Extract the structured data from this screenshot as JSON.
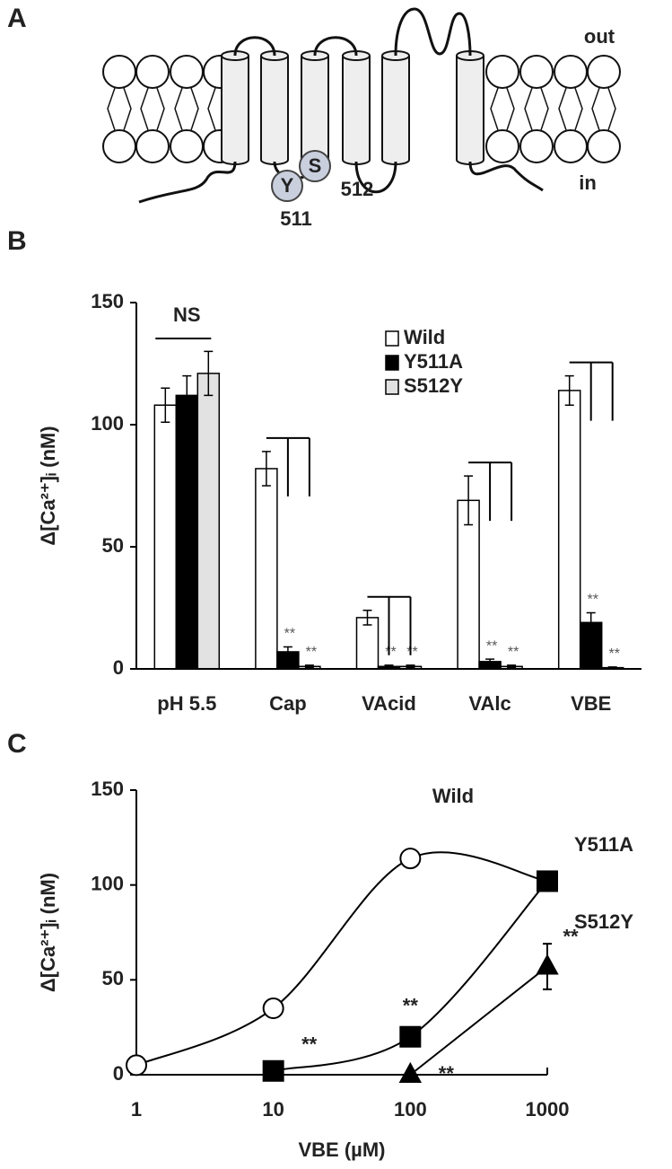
{
  "diagram": {
    "panel": "A",
    "out_label": "out",
    "in_label": "in",
    "residues": [
      {
        "letter": "Y",
        "number": "511"
      },
      {
        "letter": "S",
        "number": "512"
      }
    ]
  },
  "chart_data": [
    {
      "panel": "B",
      "type": "bar",
      "y_label": "Δ[Ca²⁺]ᵢ (nM)",
      "categories": [
        "pH 5.5",
        "Cap",
        "VAcid",
        "VAlc",
        "VBE"
      ],
      "ylim": [
        0,
        150
      ],
      "yticks": [
        0,
        50,
        100,
        150
      ],
      "legend": "top-right",
      "ns_label": "NS",
      "series": [
        {
          "name": "Wild",
          "color": "#ffffff",
          "values": [
            108,
            82,
            21,
            69,
            114
          ],
          "errors": [
            7,
            7,
            3,
            10,
            6
          ]
        },
        {
          "name": "Y511A",
          "color": "#000000",
          "values": [
            112,
            7,
            1,
            3,
            19
          ],
          "errors": [
            8,
            2,
            0.5,
            1,
            4
          ],
          "sig_labels": [
            null,
            "**",
            "**",
            "**",
            "**"
          ]
        },
        {
          "name": "S512Y",
          "color": "#e2e2e2",
          "values": [
            121,
            1,
            1,
            1,
            0.5
          ],
          "errors": [
            9,
            0.5,
            0.5,
            0.5,
            0.3
          ],
          "sig_labels": [
            null,
            "**",
            "**",
            "**",
            "**"
          ]
        }
      ]
    },
    {
      "panel": "C",
      "type": "line",
      "x_label": "VBE (µM)",
      "y_label": "Δ[Ca²⁺]ᵢ (nM)",
      "x": [
        1,
        10,
        100,
        1000
      ],
      "xlim": [
        1,
        1000
      ],
      "xticks": [
        1,
        10,
        100,
        1000
      ],
      "log_x": true,
      "ylim": [
        0,
        150
      ],
      "yticks": [
        0,
        50,
        100,
        150
      ],
      "series": [
        {
          "name": "Wild",
          "color": "#ffffff",
          "marker": "circle",
          "values": [
            5,
            35,
            114,
            102
          ],
          "errors": [
            null,
            null,
            3,
            null
          ]
        },
        {
          "name": "Y511A",
          "color": "#000000",
          "marker": "square",
          "values": [
            null,
            2,
            20,
            102
          ],
          "errors": [
            null,
            null,
            null,
            5
          ],
          "sig_labels": [
            null,
            "**",
            "**",
            null
          ]
        },
        {
          "name": "S512Y",
          "color": "#000000",
          "marker": "triangle",
          "values": [
            null,
            null,
            0,
            57
          ],
          "errors": [
            null,
            null,
            null,
            12
          ],
          "sig_labels": [
            null,
            null,
            "**",
            "**"
          ]
        }
      ]
    }
  ]
}
